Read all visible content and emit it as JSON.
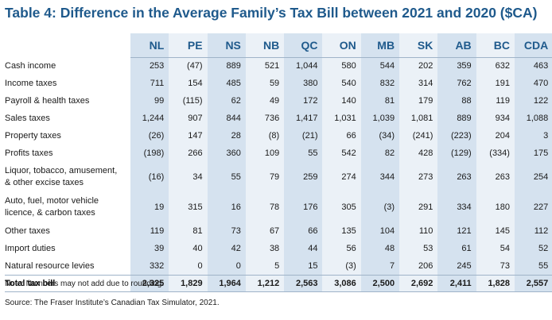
{
  "title": "Table 4: Difference in the Average Family’s Tax Bill between 2021 and 2020 ($CA)",
  "columns": [
    "NL",
    "PE",
    "NS",
    "NB",
    "QC",
    "ON",
    "MB",
    "SK",
    "AB",
    "BC",
    "CDA"
  ],
  "rows": [
    {
      "label": "Cash income",
      "values": [
        "253",
        "(47)",
        "889",
        "521",
        "1,044",
        "580",
        "544",
        "202",
        "359",
        "632",
        "463"
      ]
    },
    {
      "label": "Income taxes",
      "values": [
        "711",
        "154",
        "485",
        "59",
        "380",
        "540",
        "832",
        "314",
        "762",
        "191",
        "470"
      ]
    },
    {
      "label": "Payroll & health taxes",
      "values": [
        "99",
        "(115)",
        "62",
        "49",
        "172",
        "140",
        "81",
        "179",
        "88",
        "119",
        "122"
      ]
    },
    {
      "label": "Sales taxes",
      "values": [
        "1,244",
        "907",
        "844",
        "736",
        "1,417",
        "1,031",
        "1,039",
        "1,081",
        "889",
        "934",
        "1,088"
      ]
    },
    {
      "label": "Property taxes",
      "values": [
        "(26)",
        "147",
        "28",
        "(8)",
        "(21)",
        "66",
        "(34)",
        "(241)",
        "(223)",
        "204",
        "3"
      ]
    },
    {
      "label": "Profits taxes",
      "values": [
        "(198)",
        "266",
        "360",
        "109",
        "55",
        "542",
        "82",
        "428",
        "(129)",
        "(334)",
        "175"
      ]
    },
    {
      "label": "Liquor, tobacco, amusement, & other excise taxes",
      "values": [
        "(16)",
        "34",
        "55",
        "79",
        "259",
        "274",
        "344",
        "273",
        "263",
        "263",
        "254"
      ]
    },
    {
      "label": "Auto, fuel, motor vehicle licence, & carbon taxes",
      "values": [
        "19",
        "315",
        "16",
        "78",
        "176",
        "305",
        "(3)",
        "291",
        "334",
        "180",
        "227"
      ]
    },
    {
      "label": "Other taxes",
      "values": [
        "119",
        "81",
        "73",
        "67",
        "66",
        "135",
        "104",
        "110",
        "121",
        "145",
        "112"
      ]
    },
    {
      "label": "Import duties",
      "values": [
        "39",
        "40",
        "42",
        "38",
        "44",
        "56",
        "48",
        "53",
        "61",
        "54",
        "52"
      ]
    },
    {
      "label": "Natural resource levies",
      "values": [
        "332",
        "0",
        "0",
        "5",
        "15",
        "(3)",
        "7",
        "206",
        "245",
        "73",
        "55"
      ]
    }
  ],
  "total": {
    "label": "Total tax bill",
    "values": [
      "2,325",
      "1,829",
      "1,964",
      "1,212",
      "2,563",
      "3,086",
      "2,500",
      "2,692",
      "2,411",
      "1,828",
      "2,557"
    ]
  },
  "note": "Note: Numbers may not add due to rounding.",
  "source": "Source: The Fraser Institute’s Canadian Tax Simulator, 2021."
}
